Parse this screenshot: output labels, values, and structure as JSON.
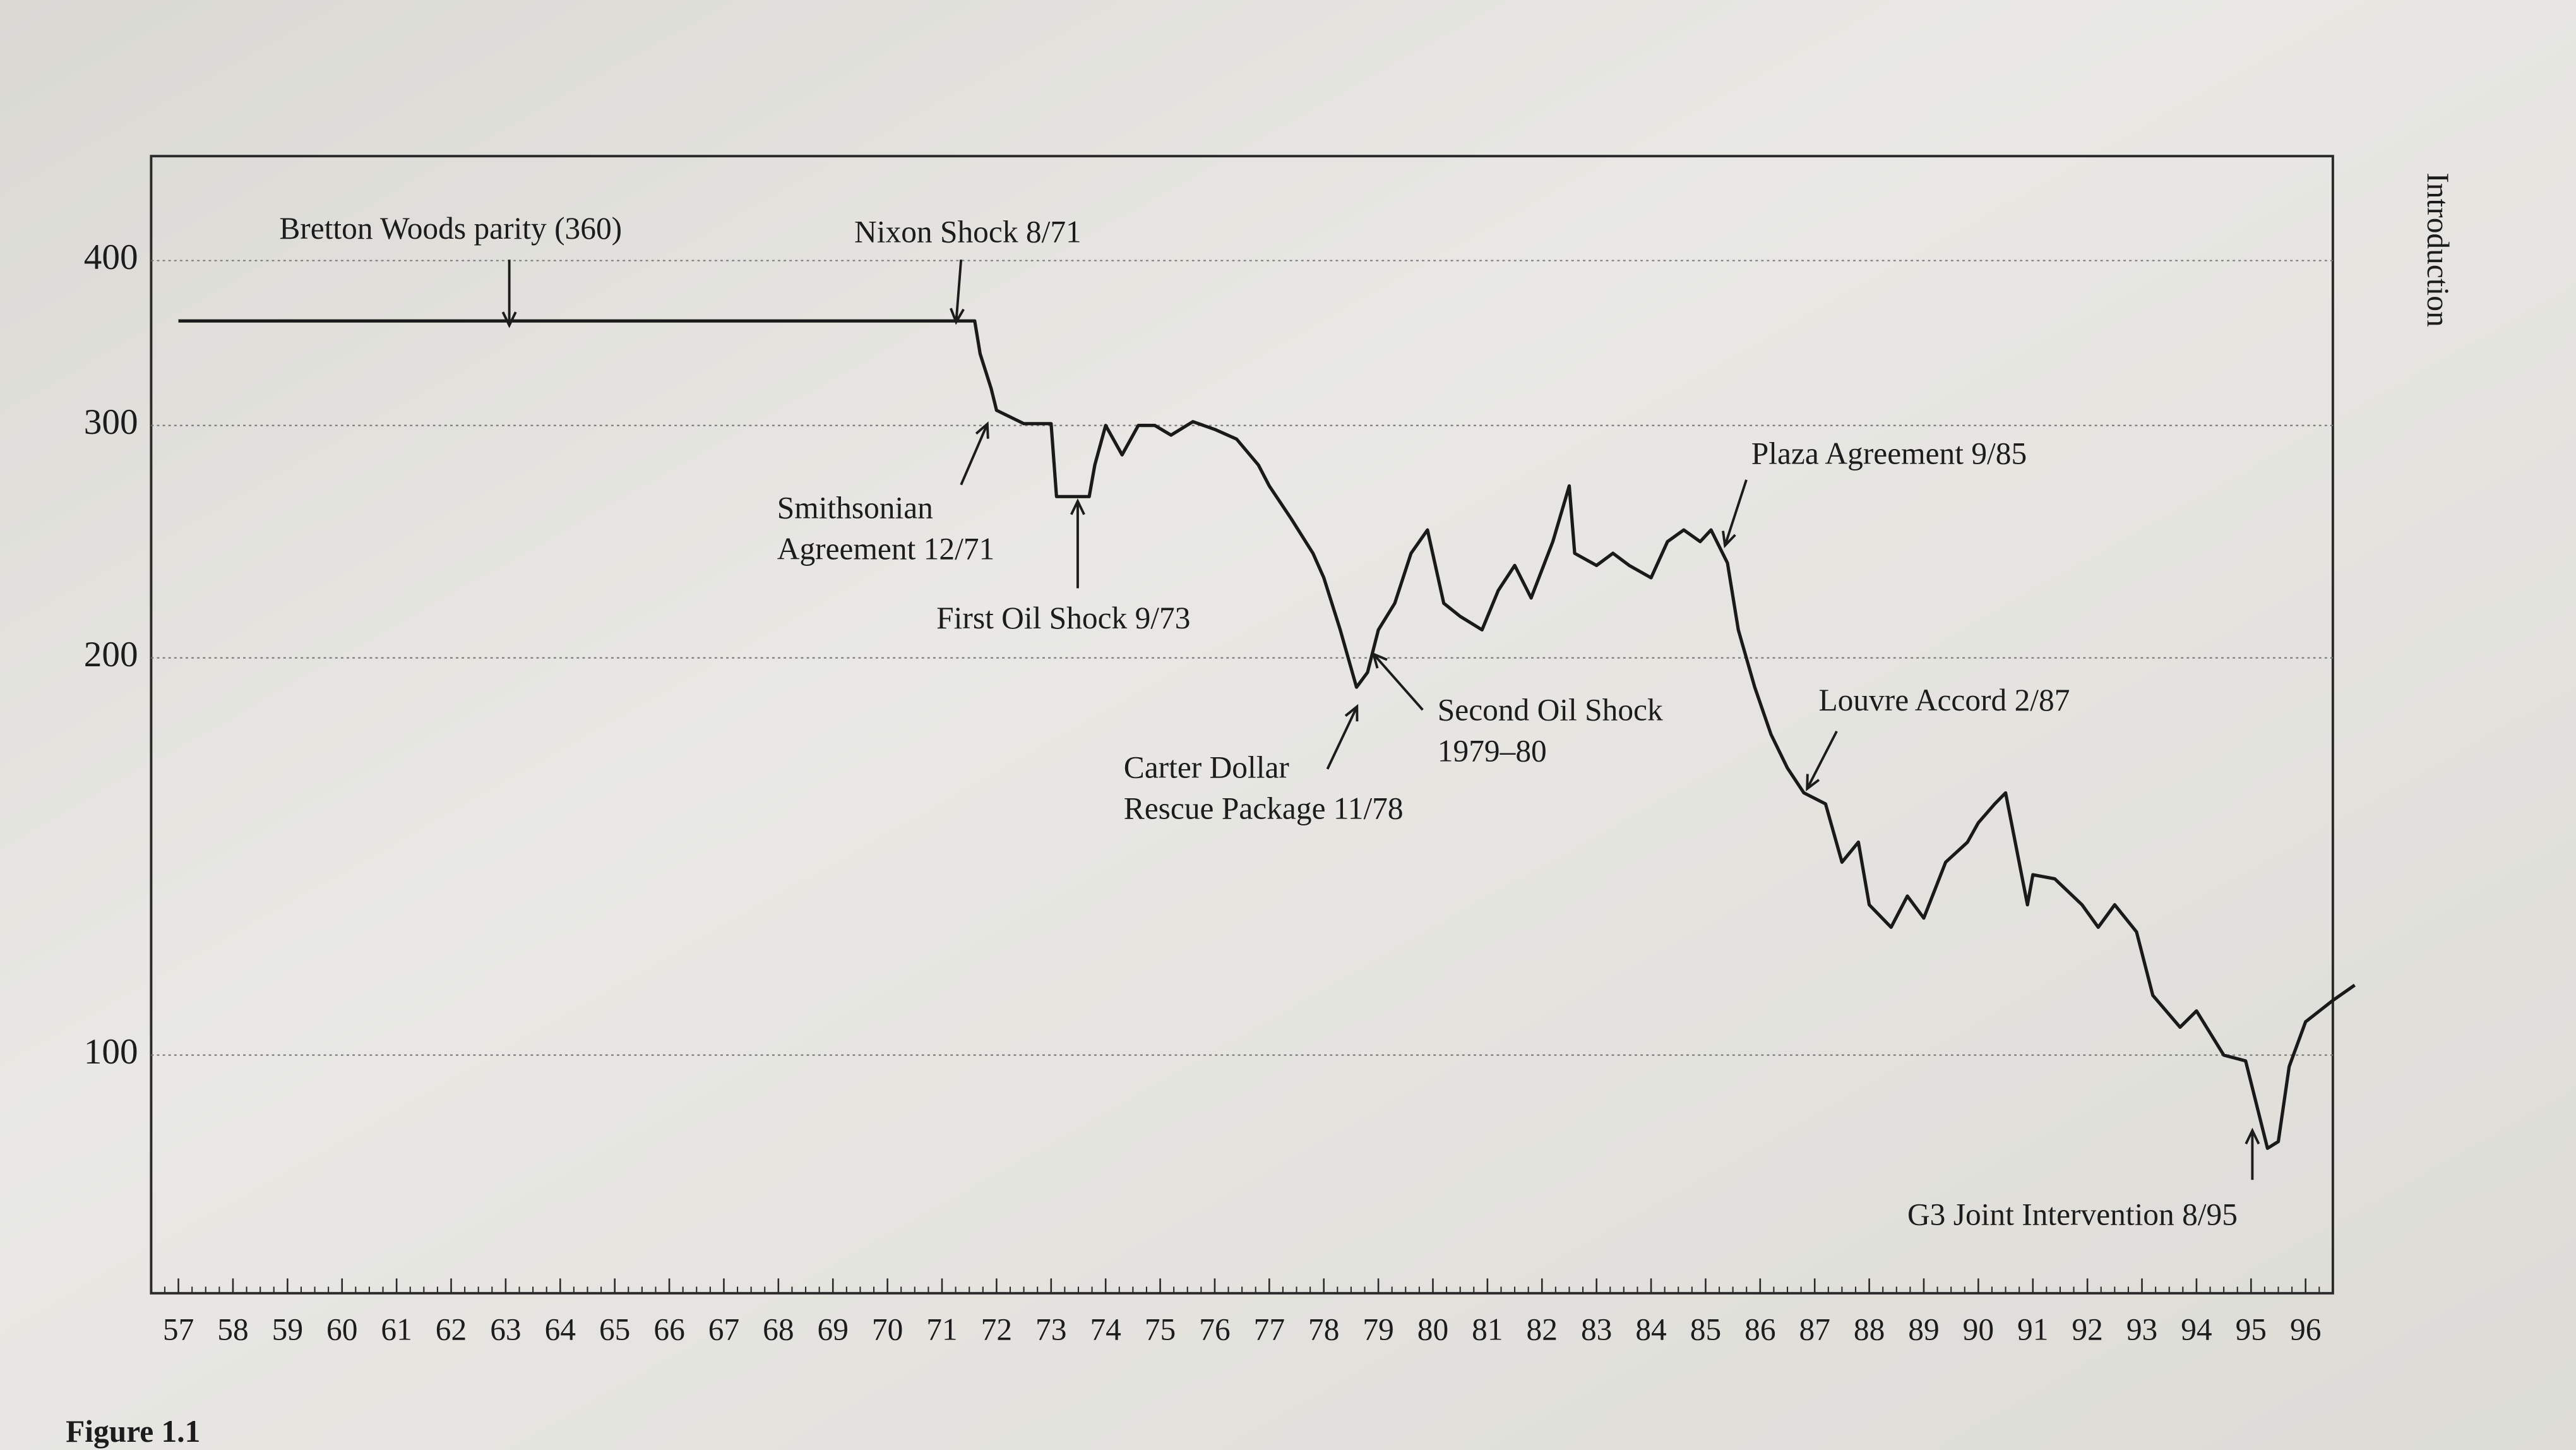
{
  "page": {
    "running_head": "Introduction",
    "figure_label": "Figure 1.1"
  },
  "chart_data": {
    "type": "line",
    "log_scale": true,
    "grid": true,
    "color": "#1a1a1a",
    "xlim": [
      56.5,
      96.5
    ],
    "xticks": [
      57,
      58,
      59,
      60,
      61,
      62,
      63,
      64,
      65,
      66,
      67,
      68,
      69,
      70,
      71,
      72,
      73,
      74,
      75,
      76,
      77,
      78,
      79,
      80,
      81,
      82,
      83,
      84,
      85,
      86,
      87,
      88,
      89,
      90,
      91,
      92,
      93,
      94,
      95,
      96
    ],
    "ylim": [
      66,
      480
    ],
    "yticks": [
      100,
      200,
      300,
      400
    ],
    "x": [
      57.0,
      71.6,
      71.7,
      71.9,
      72.0,
      72.5,
      73.0,
      73.1,
      73.7,
      73.8,
      74.0,
      74.3,
      74.6,
      74.9,
      75.2,
      75.6,
      76.0,
      76.4,
      76.8,
      77.0,
      77.4,
      77.8,
      78.0,
      78.3,
      78.6,
      78.8,
      79.0,
      79.3,
      79.6,
      79.9,
      80.2,
      80.5,
      80.9,
      81.2,
      81.5,
      81.8,
      82.2,
      82.5,
      82.6,
      83.0,
      83.3,
      83.6,
      84.0,
      84.3,
      84.6,
      84.9,
      85.1,
      85.4,
      85.6,
      85.9,
      86.2,
      86.5,
      86.8,
      87.2,
      87.5,
      87.8,
      88.0,
      88.4,
      88.7,
      89.0,
      89.4,
      89.8,
      90.0,
      90.3,
      90.5,
      90.9,
      91.0,
      91.4,
      91.9,
      92.2,
      92.5,
      92.9,
      93.2,
      93.7,
      94.0,
      94.5,
      94.9,
      95.3,
      95.5,
      95.7,
      96.0,
      96.5,
      96.9
    ],
    "values": [
      360,
      360,
      340,
      320,
      308,
      301,
      301,
      265,
      265,
      280,
      300,
      285,
      300,
      300,
      295,
      302,
      298,
      293,
      280,
      270,
      255,
      240,
      230,
      210,
      190,
      195,
      210,
      220,
      240,
      250,
      220,
      215,
      210,
      225,
      235,
      222,
      245,
      270,
      240,
      235,
      240,
      235,
      230,
      245,
      250,
      245,
      250,
      236,
      210,
      190,
      175,
      165,
      158,
      155,
      140,
      145,
      130,
      125,
      132,
      127,
      140,
      145,
      150,
      155,
      158,
      130,
      137,
      136,
      130,
      125,
      130,
      124,
      111,
      105,
      108,
      100,
      99,
      85,
      86,
      98,
      106,
      110,
      113
    ],
    "annotations": [
      [
        "Bretton Woods parity (360)"
      ],
      [
        "Nixon Shock 8/71"
      ],
      [
        "Smithsonian",
        "Agreement 12/71"
      ],
      [
        "First Oil Shock 9/73"
      ],
      [
        "Carter Dollar",
        "Rescue Package 11/78"
      ],
      [
        "Second Oil Shock",
        "1979–80"
      ],
      [
        "Plaza Agreement 9/85"
      ],
      [
        "Louvre Accord 2/87"
      ],
      [
        "G3 Joint Intervention 8/95"
      ]
    ]
  }
}
